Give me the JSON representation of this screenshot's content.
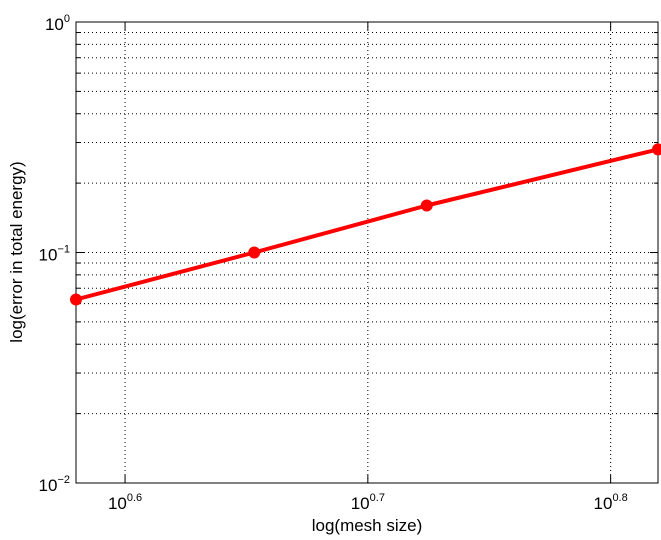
{
  "chart_data": {
    "type": "line",
    "xscale": "log",
    "yscale": "log",
    "xlabel": "log(mesh size)",
    "ylabel": "log(error in total energy)",
    "xlim": [
      3.8,
      6.6
    ],
    "ylim": [
      0.01,
      1
    ],
    "x_ticks": [
      {
        "base": "10",
        "exp": "0.6",
        "value": 3.981
      },
      {
        "base": "10",
        "exp": "0.7",
        "value": 5.012
      },
      {
        "base": "10",
        "exp": "0.8",
        "value": 6.31
      }
    ],
    "y_ticks": [
      {
        "base": "10",
        "exp": "−2",
        "value": 0.01
      },
      {
        "base": "10",
        "exp": "−1",
        "value": 0.1
      },
      {
        "base": "10",
        "exp": "0",
        "value": 1
      }
    ],
    "grid": true,
    "series": [
      {
        "color": "#ff0000",
        "marker": "circle",
        "x": [
          3.8,
          4.5,
          5.3,
          6.6
        ],
        "y": [
          0.0625,
          0.1,
          0.16,
          0.28
        ]
      }
    ]
  }
}
